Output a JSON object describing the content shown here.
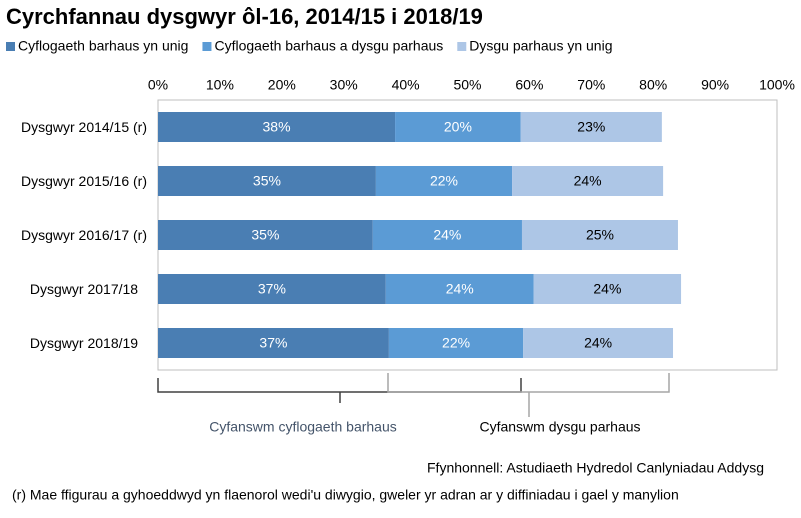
{
  "chart_data": {
    "type": "stacked-bar-horizontal",
    "title": "Cyrchfannau dysgwyr ôl-16, 2014/15 i 2018/19",
    "categories": [
      "Dysgwyr 2014/15 (r)",
      "Dysgwyr 2015/16 (r)",
      "Dysgwyr 2016/17 (r)",
      "Dysgwyr 2017/18",
      "Dysgwyr 2018/19"
    ],
    "series": [
      {
        "name": "Cyflogaeth barhaus yn unig",
        "color": "#4a7eb3",
        "label_color": "#ffffff",
        "values": [
          38.3,
          35.2,
          34.7,
          36.8,
          37.3
        ],
        "value_labels": [
          "38%",
          "35%",
          "35%",
          "37%",
          "37%"
        ]
      },
      {
        "name": "Cyflogaeth barhaus a dysgu parhaus",
        "color": "#5b9bd5",
        "label_color": "#ffffff",
        "values": [
          20.3,
          22.0,
          24.1,
          23.9,
          21.7
        ],
        "value_labels": [
          "20%",
          "22%",
          "24%",
          "24%",
          "22%"
        ]
      },
      {
        "name": "Dysgu parhaus yn unig",
        "color": "#adc6e6",
        "label_color": "#000000",
        "values": [
          22.8,
          24.4,
          25.2,
          23.8,
          24.2
        ],
        "value_labels": [
          "23%",
          "24%",
          "25%",
          "24%",
          "24%"
        ]
      }
    ],
    "xlim": [
      0,
      100
    ],
    "xticks": [
      {
        "value": 0,
        "label": "0%"
      },
      {
        "value": 10,
        "label": "10%"
      },
      {
        "value": 20,
        "label": "20%"
      },
      {
        "value": 30,
        "label": "30%"
      },
      {
        "value": 40,
        "label": "40%"
      },
      {
        "value": 50,
        "label": "50%"
      },
      {
        "value": 60,
        "label": "60%"
      },
      {
        "value": 70,
        "label": "70%"
      },
      {
        "value": 80,
        "label": "80%"
      },
      {
        "value": 90,
        "label": "90%"
      },
      {
        "value": 100,
        "label": "100%"
      }
    ],
    "annotations": [
      "Cyfanswm cyflogaeth barhaus",
      "Cyfanswm dysgu parhaus"
    ],
    "source": "Ffynhonnell: Astudiaeth Hydredol Canlyniadau Addysg",
    "footnote": "(r) Mae ffigurau a gyhoeddwyd yn flaenorol wedi'u diwygio, gweler yr adran ar y diffiniadau i gael y manylion"
  }
}
